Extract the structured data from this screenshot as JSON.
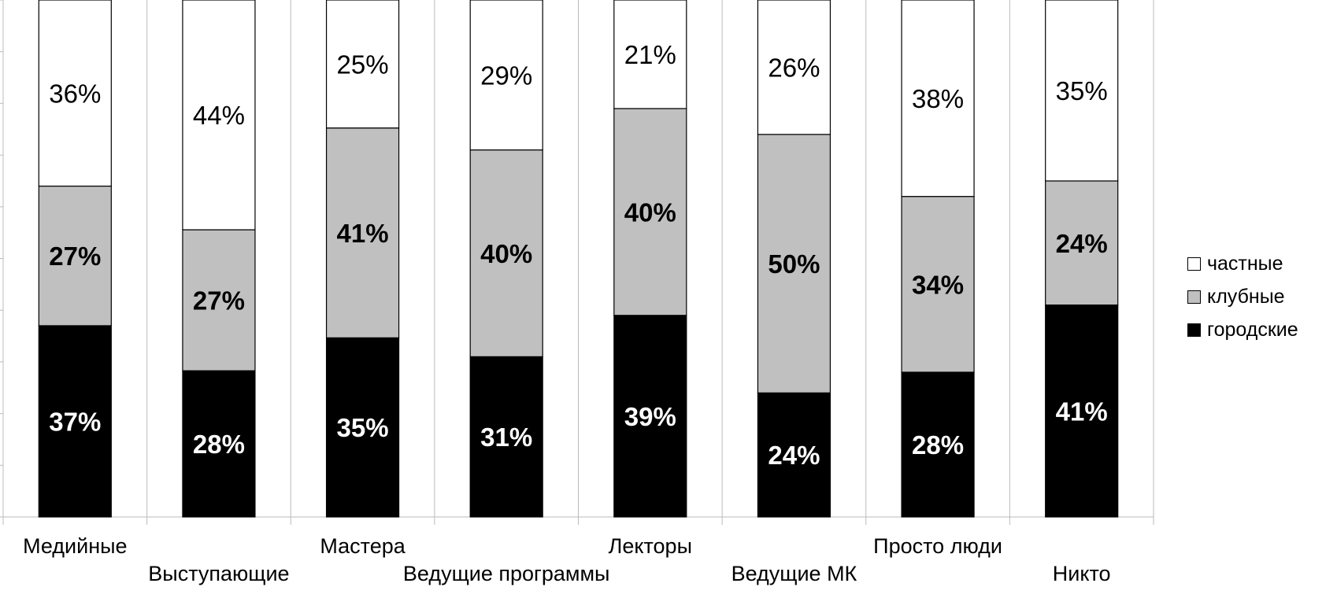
{
  "chart_data": {
    "type": "bar",
    "stacked": true,
    "normalized_percent": true,
    "categories": [
      "Медийные",
      "Выступающие",
      "Мастера",
      "Ведущие программы",
      "Лекторы",
      "Ведущие МК",
      "Просто люди",
      "Никто"
    ],
    "series": [
      {
        "name": "городские",
        "color": "#000000",
        "label_color": "#ffffff",
        "bold": true,
        "values": [
          37,
          28,
          35,
          31,
          39,
          24,
          28,
          41
        ]
      },
      {
        "name": "клубные",
        "color": "#c0c0c0",
        "label_color": "#000000",
        "bold": true,
        "values": [
          27,
          27,
          41,
          40,
          40,
          50,
          34,
          24
        ]
      },
      {
        "name": "частные",
        "color": "#ffffff",
        "label_color": "#000000",
        "bold": false,
        "values": [
          36,
          44,
          25,
          29,
          21,
          26,
          38,
          35
        ]
      }
    ],
    "data_labels": [
      [
        "37%",
        "28%",
        "35%",
        "31%",
        "39%",
        "24%",
        "28%",
        "41%"
      ],
      [
        "27%",
        "27%",
        "41%",
        "40%",
        "40%",
        "50%",
        "34%",
        "24%"
      ],
      [
        "36%",
        "44%",
        "25%",
        "29%",
        "21%",
        "26%",
        "38%",
        "35%"
      ]
    ],
    "ylim": [
      0,
      100
    ],
    "grid": false,
    "legend_position": "right",
    "legend_order": [
      "частные",
      "клубные",
      "городские"
    ]
  }
}
